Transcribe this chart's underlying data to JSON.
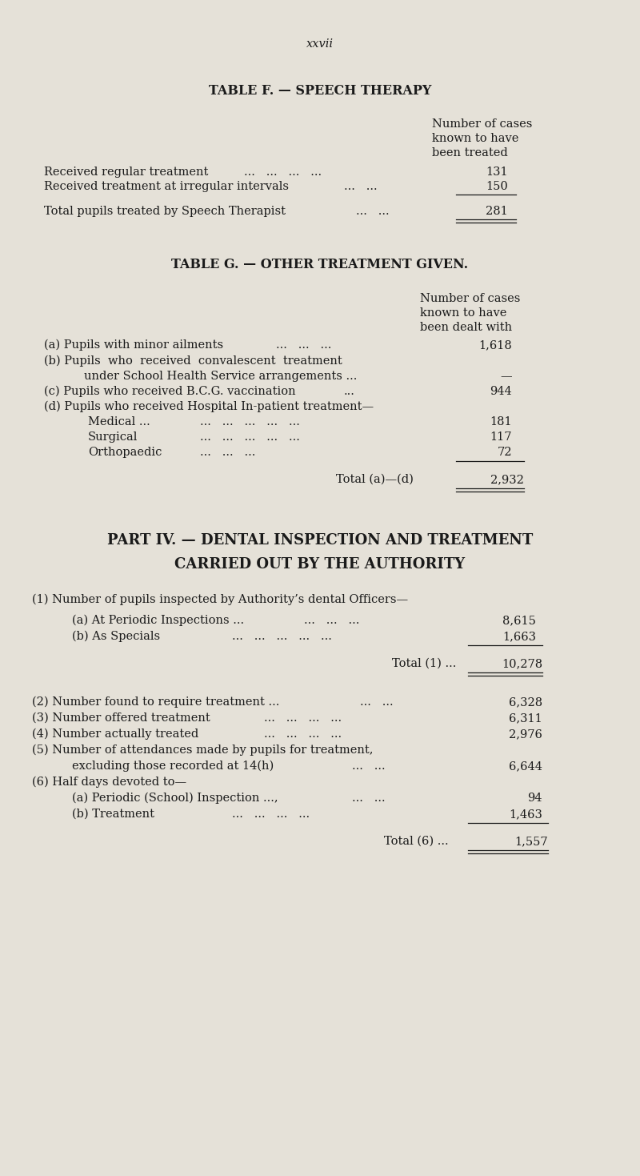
{
  "bg_color": "#e5e1d8",
  "text_color": "#1a1a1a",
  "page_number": "xxvii",
  "table_f_title": "TABLE F. — SPEECH THERAPY",
  "table_f_col_header": [
    "Number of cases",
    "known to have",
    "been treated"
  ],
  "table_f_total_label": "Total pupils treated by Speech Therapist",
  "table_f_total_value": "281",
  "table_g_title": "TABLE G. — OTHER TREATMENT GIVEN.",
  "table_g_col_header": [
    "Number of cases",
    "known to have",
    "been dealt with"
  ],
  "table_g_total_value": "2,932",
  "part4_title1": "PART IV. — DENTAL INSPECTION AND TREATMENT",
  "part4_title2": "CARRIED OUT BY THE AUTHORITY",
  "dental_total1_value": "10,278",
  "dental_total6_value": "1,557"
}
